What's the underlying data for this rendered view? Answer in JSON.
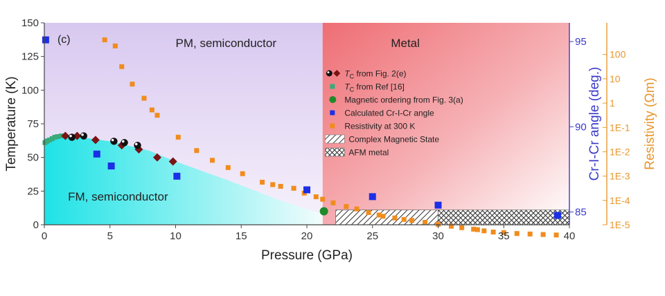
{
  "chart_data": {
    "type": "scatter",
    "panel_label": "(c)",
    "xlabel": "Pressure (GPa)",
    "xlim": [
      0,
      40
    ],
    "xticks": [
      0,
      5,
      10,
      15,
      20,
      25,
      30,
      35,
      40
    ],
    "ylabel_left": "Temperature (K)",
    "ylim_left": [
      0,
      150
    ],
    "yticks_left": [
      0,
      25,
      50,
      75,
      100,
      125,
      150
    ],
    "ylabel_angle": "Cr-I-Cr angle (deg.)",
    "ylim_angle": [
      84.25,
      96.1
    ],
    "yticks_angle": [
      85,
      90,
      95
    ],
    "ylabel_resistivity": "Resistivity (Ωm)",
    "resistivity_scale": "log",
    "ylim_resistivity_log10": [
      -5,
      3.3
    ],
    "yticks_resistivity": [
      {
        "label": "1E-5",
        "log10": -5
      },
      {
        "label": "1E-4",
        "log10": -4
      },
      {
        "label": "1E-3",
        "log10": -3
      },
      {
        "label": "1E-2",
        "log10": -2
      },
      {
        "label": "1E-1",
        "log10": -1
      },
      {
        "label": "1",
        "log10": 0
      },
      {
        "label": "10",
        "log10": 1
      },
      {
        "label": "100",
        "log10": 2
      }
    ],
    "regions": {
      "pm": "PM, semiconductor",
      "metal": "Metal",
      "fm": "FM, semiconductor",
      "metal_boundary_gpa": 21.2
    },
    "legend_placement": "center-right",
    "legend": [
      {
        "key": "tc_fig2",
        "pre": "T",
        "sub": "C",
        "post": " from Fig. 2(e)"
      },
      {
        "key": "tc_ref",
        "pre": "T",
        "sub": "C",
        "post": " from Ref [16]"
      },
      {
        "key": "mag_order",
        "text": "Magnetic ordering from Fig. 3(a)"
      },
      {
        "key": "angle",
        "text": "Calculated Cr-I-Cr angle"
      },
      {
        "key": "resistivity",
        "text": "Resistivity at 300 K"
      },
      {
        "key": "complex",
        "text": "Complex Magnetic State"
      },
      {
        "key": "afm",
        "text": "AFM  metal"
      }
    ],
    "colors": {
      "tc_fig2_dark": "#7a1414",
      "tc_fig2_black": "#111111",
      "tc_ref": "#3aaa7a",
      "mag_order": "#1f8a2a",
      "angle": "#1c2fe6",
      "resistivity": "#f08c1e",
      "angle_axis": "#3a3ac8",
      "resistivity_axis": "#e8962e",
      "pm_region": "#e2d7f2",
      "metal_region": "#f28a8e",
      "fm_region": "#35e8e8"
    },
    "fm_boundary": {
      "x": [
        0,
        2,
        5,
        8,
        10,
        14,
        18,
        21.2
      ],
      "y": [
        64,
        66,
        62,
        55,
        47,
        33,
        18,
        8
      ]
    },
    "series": [
      {
        "key": "tc_fig2_diamond",
        "x": [
          1.6,
          2.5,
          3.9,
          5.9,
          7.2,
          8.6,
          9.8
        ],
        "y": [
          66,
          66,
          63,
          59,
          56,
          50,
          47
        ]
      },
      {
        "key": "tc_fig2_circle",
        "x": [
          2.1,
          3.0,
          5.3,
          6.1,
          7.1
        ],
        "y": [
          65,
          66,
          62,
          61,
          59
        ]
      },
      {
        "key": "tc_ref",
        "x": [
          0.05,
          0.2,
          0.4,
          0.6,
          0.8,
          1.0,
          1.3
        ],
        "y": [
          61,
          62,
          63,
          64,
          65,
          65.5,
          66
        ]
      },
      {
        "key": "mag_order",
        "x": [
          21.3
        ],
        "y": [
          10
        ]
      },
      {
        "key": "angle",
        "x": [
          0.1,
          4.0,
          5.1,
          10.1,
          20.0,
          25.0,
          30.0,
          39.1
        ],
        "y_deg": [
          95.1,
          88.4,
          87.7,
          87.1,
          86.3,
          85.9,
          85.4,
          84.8
        ]
      },
      {
        "key": "resistivity",
        "x": [
          4.6,
          5.4,
          5.9,
          6.7,
          7.6,
          8.2,
          8.6,
          10.2,
          11.6,
          12.8,
          14.0,
          15.1,
          16.6,
          17.4,
          18.0,
          19.0,
          19.8,
          20.7,
          21.2,
          22.0,
          23.0,
          23.8,
          24.7,
          25.5,
          25.8,
          26.7,
          27.4,
          28.0,
          29.0,
          30.0,
          31.0,
          31.8,
          32.7,
          33.0,
          33.5,
          34.2,
          35.0,
          36.0,
          37.0,
          38.0,
          39.0
        ],
        "log10": [
          2.6,
          2.35,
          1.5,
          0.78,
          0.2,
          -0.28,
          -0.5,
          -1.4,
          -1.95,
          -2.35,
          -2.65,
          -2.9,
          -3.25,
          -3.35,
          -3.42,
          -3.5,
          -3.7,
          -3.85,
          -3.95,
          -4.1,
          -4.25,
          -4.35,
          -4.5,
          -4.6,
          -4.65,
          -4.72,
          -4.78,
          -4.82,
          -4.9,
          -4.98,
          -5.06,
          -5.12,
          -5.18,
          -5.2,
          -5.25,
          -5.3,
          -5.32,
          -5.36,
          -5.38,
          -5.4,
          -5.42
        ]
      }
    ],
    "hatched_regions": [
      {
        "key": "complex",
        "x0": 22.2,
        "x1": 30.0,
        "y0": 0,
        "y1": 11
      },
      {
        "key": "afm",
        "x0": 30.0,
        "x1": 40.0,
        "y0": 0,
        "y1": 11
      }
    ]
  }
}
